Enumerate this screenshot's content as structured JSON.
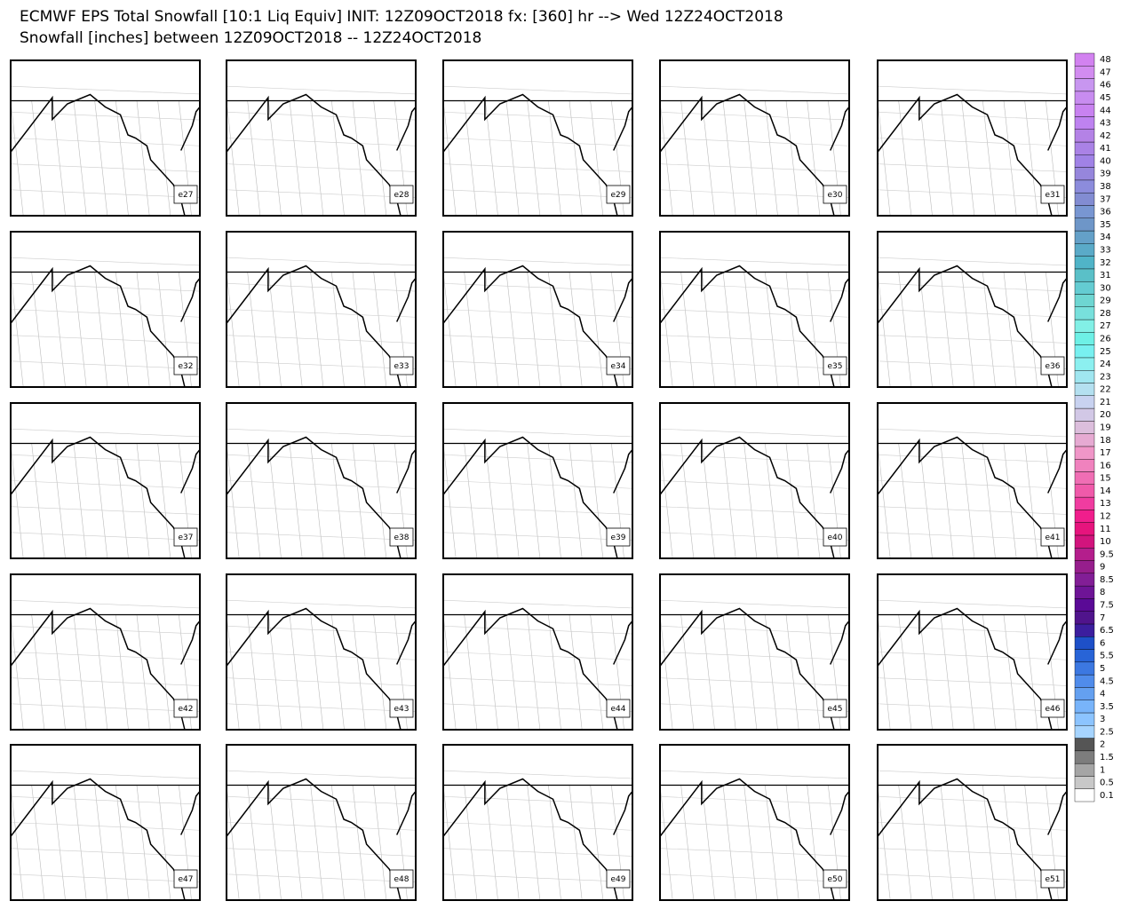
{
  "header": {
    "title_line1": "ECMWF EPS Total Snowfall [10:1 Liq Equiv] INIT: 12Z09OCT2018 fx: [360] hr --> Wed 12Z24OCT2018",
    "title_line2": "Snowfall [inches] between 12Z09OCT2018 -- 12Z24OCT2018"
  },
  "panels": [
    "e27",
    "e28",
    "e29",
    "e30",
    "e31",
    "e32",
    "e33",
    "e34",
    "e35",
    "e36",
    "e37",
    "e38",
    "e39",
    "e40",
    "e41",
    "e42",
    "e43",
    "e44",
    "e45",
    "e46",
    "e47",
    "e48",
    "e49",
    "e50",
    "e51"
  ],
  "colorbar": [
    {
      "label": "0.1",
      "color": "#ffffff"
    },
    {
      "label": "0.5",
      "color": "#c8c8c8"
    },
    {
      "label": "1",
      "color": "#a5a5a5"
    },
    {
      "label": "1.5",
      "color": "#7d7d7d"
    },
    {
      "label": "2",
      "color": "#555555"
    },
    {
      "label": "2.5",
      "color": "#a6d4ff"
    },
    {
      "label": "3",
      "color": "#8cc4ff"
    },
    {
      "label": "3.5",
      "color": "#78b4fa"
    },
    {
      "label": "4",
      "color": "#64a0f0"
    },
    {
      "label": "4.5",
      "color": "#508ceb"
    },
    {
      "label": "5",
      "color": "#3c78e1"
    },
    {
      "label": "5.5",
      "color": "#2864d7"
    },
    {
      "label": "6",
      "color": "#1e50c8"
    },
    {
      "label": "6.5",
      "color": "#3c1e9e"
    },
    {
      "label": "7",
      "color": "#50148c"
    },
    {
      "label": "7.5",
      "color": "#5a0a96"
    },
    {
      "label": "8",
      "color": "#6e1496"
    },
    {
      "label": "8.5",
      "color": "#821e96"
    },
    {
      "label": "9",
      "color": "#961e8c"
    },
    {
      "label": "9.5",
      "color": "#b41e8c"
    },
    {
      "label": "10",
      "color": "#d2147d"
    },
    {
      "label": "11",
      "color": "#e6147d"
    },
    {
      "label": "12",
      "color": "#f01e8c"
    },
    {
      "label": "13",
      "color": "#f03ca0"
    },
    {
      "label": "14",
      "color": "#f05aaa"
    },
    {
      "label": "15",
      "color": "#f06eb4"
    },
    {
      "label": "16",
      "color": "#f082be"
    },
    {
      "label": "17",
      "color": "#f096c8"
    },
    {
      "label": "18",
      "color": "#e6aad2"
    },
    {
      "label": "19",
      "color": "#dcbedc"
    },
    {
      "label": "20",
      "color": "#d2c8e6"
    },
    {
      "label": "21",
      "color": "#c8d2f0"
    },
    {
      "label": "22",
      "color": "#b4e0f0"
    },
    {
      "label": "23",
      "color": "#a0e6f0"
    },
    {
      "label": "24",
      "color": "#8cf0f0"
    },
    {
      "label": "25",
      "color": "#78f0f0"
    },
    {
      "label": "26",
      "color": "#6ef0e6"
    },
    {
      "label": "27",
      "color": "#82f0e6"
    },
    {
      "label": "28",
      "color": "#78e0dc"
    },
    {
      "label": "29",
      "color": "#6ed6d2"
    },
    {
      "label": "30",
      "color": "#64ccd2"
    },
    {
      "label": "31",
      "color": "#5ac0c8"
    },
    {
      "label": "32",
      "color": "#50b4c8"
    },
    {
      "label": "33",
      "color": "#5aaac8"
    },
    {
      "label": "34",
      "color": "#64a0c8"
    },
    {
      "label": "35",
      "color": "#6e96c8"
    },
    {
      "label": "36",
      "color": "#7896d2"
    },
    {
      "label": "37",
      "color": "#828cd2"
    },
    {
      "label": "38",
      "color": "#8c8cdc"
    },
    {
      "label": "39",
      "color": "#9686dc"
    },
    {
      "label": "40",
      "color": "#a082e6"
    },
    {
      "label": "41",
      "color": "#aa82e6"
    },
    {
      "label": "42",
      "color": "#b482e6"
    },
    {
      "label": "43",
      "color": "#be82f0"
    },
    {
      "label": "44",
      "color": "#c882f0"
    },
    {
      "label": "45",
      "color": "#c88cf0"
    },
    {
      "label": "46",
      "color": "#c896f0"
    },
    {
      "label": "47",
      "color": "#d28cf0"
    },
    {
      "label": "48",
      "color": "#d282f0"
    }
  ]
}
